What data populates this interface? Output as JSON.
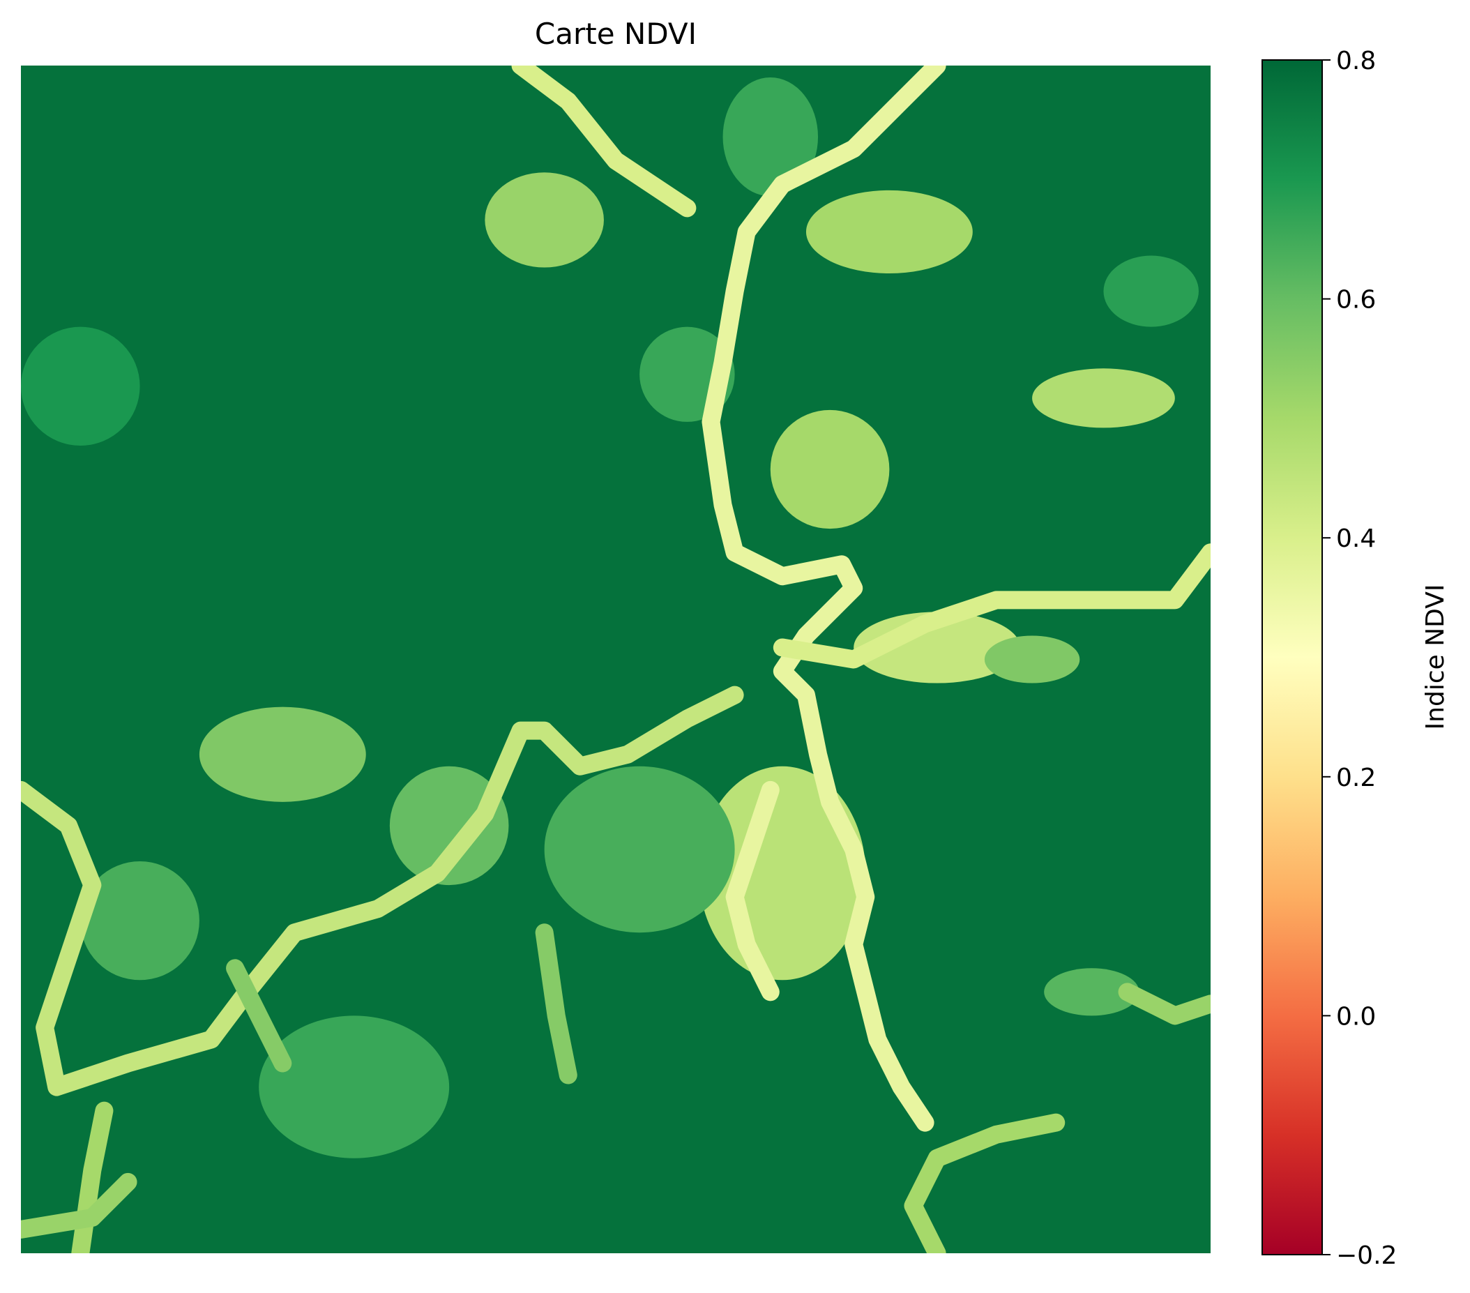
{
  "chart_data": {
    "type": "heatmap",
    "title": "Carte NDVI",
    "xlabel": "",
    "ylabel": "",
    "axes_visible": false,
    "grid": false,
    "colormap": "RdYlGn",
    "color_stops": [
      "#a50026",
      "#d73027",
      "#f46d43",
      "#fdae61",
      "#fee08b",
      "#ffffbf",
      "#d9ef8b",
      "#a6d96a",
      "#66bd63",
      "#1a9850",
      "#006837"
    ],
    "vmin": -0.2,
    "vmax": 0.8,
    "colorbar": {
      "label": "Indice NDVI",
      "placement": "right",
      "ticks": [
        {
          "value": 0.8,
          "label": "0.8"
        },
        {
          "value": 0.6,
          "label": "0.6"
        },
        {
          "value": 0.4,
          "label": "0.4"
        },
        {
          "value": 0.2,
          "label": "0.2"
        },
        {
          "value": 0.0,
          "label": "0.0"
        },
        {
          "value": -0.2,
          "label": "−0.2"
        }
      ]
    },
    "background_value": 0.78,
    "features": [
      {
        "kind": "path",
        "value": 0.36,
        "points": [
          [
            0.77,
            0.0
          ],
          [
            0.74,
            0.03
          ],
          [
            0.7,
            0.07
          ],
          [
            0.64,
            0.1
          ],
          [
            0.61,
            0.14
          ],
          [
            0.6,
            0.19
          ],
          [
            0.59,
            0.25
          ],
          [
            0.58,
            0.3
          ],
          [
            0.59,
            0.37
          ],
          [
            0.6,
            0.41
          ],
          [
            0.64,
            0.43
          ],
          [
            0.69,
            0.42
          ],
          [
            0.7,
            0.44
          ],
          [
            0.66,
            0.48
          ],
          [
            0.64,
            0.51
          ],
          [
            0.66,
            0.53
          ],
          [
            0.67,
            0.58
          ],
          [
            0.68,
            0.62
          ],
          [
            0.7,
            0.66
          ],
          [
            0.71,
            0.7
          ],
          [
            0.7,
            0.74
          ],
          [
            0.71,
            0.78
          ],
          [
            0.72,
            0.82
          ],
          [
            0.74,
            0.86
          ],
          [
            0.76,
            0.89
          ]
        ]
      },
      {
        "kind": "path",
        "value": 0.36,
        "points": [
          [
            0.63,
            0.61
          ],
          [
            0.62,
            0.64
          ],
          [
            0.61,
            0.67
          ],
          [
            0.6,
            0.7
          ],
          [
            0.61,
            0.74
          ],
          [
            0.63,
            0.78
          ]
        ]
      },
      {
        "kind": "path",
        "value": 0.4,
        "points": [
          [
            0.42,
            0.0
          ],
          [
            0.46,
            0.03
          ],
          [
            0.5,
            0.08
          ],
          [
            0.56,
            0.12
          ]
        ]
      },
      {
        "kind": "path",
        "value": 0.4,
        "points": [
          [
            0.64,
            0.49
          ],
          [
            0.7,
            0.5
          ],
          [
            0.76,
            0.47
          ],
          [
            0.82,
            0.45
          ],
          [
            0.88,
            0.45
          ],
          [
            0.97,
            0.45
          ],
          [
            1.0,
            0.41
          ]
        ]
      },
      {
        "kind": "path",
        "value": 0.44,
        "points": [
          [
            0.0,
            0.61
          ],
          [
            0.04,
            0.64
          ],
          [
            0.06,
            0.69
          ],
          [
            0.04,
            0.75
          ],
          [
            0.02,
            0.81
          ],
          [
            0.03,
            0.86
          ],
          [
            0.09,
            0.84
          ],
          [
            0.16,
            0.82
          ],
          [
            0.19,
            0.78
          ],
          [
            0.23,
            0.73
          ],
          [
            0.3,
            0.71
          ],
          [
            0.35,
            0.68
          ],
          [
            0.39,
            0.63
          ],
          [
            0.42,
            0.56
          ],
          [
            0.44,
            0.56
          ],
          [
            0.47,
            0.59
          ],
          [
            0.51,
            0.58
          ],
          [
            0.56,
            0.55
          ],
          [
            0.6,
            0.53
          ]
        ]
      },
      {
        "kind": "path",
        "value": 0.5,
        "points": [
          [
            0.07,
            0.88
          ],
          [
            0.06,
            0.93
          ],
          [
            0.05,
            1.0
          ]
        ]
      },
      {
        "kind": "path",
        "value": 0.5,
        "points": [
          [
            0.77,
            1.0
          ],
          [
            0.75,
            0.96
          ],
          [
            0.77,
            0.92
          ],
          [
            0.82,
            0.9
          ],
          [
            0.87,
            0.89
          ]
        ]
      },
      {
        "kind": "path",
        "value": 0.52,
        "points": [
          [
            0.0,
            0.98
          ],
          [
            0.06,
            0.97
          ],
          [
            0.09,
            0.94
          ]
        ]
      },
      {
        "kind": "path",
        "value": 0.55,
        "points": [
          [
            0.18,
            0.76
          ],
          [
            0.2,
            0.8
          ],
          [
            0.22,
            0.84
          ]
        ]
      },
      {
        "kind": "path",
        "value": 0.55,
        "points": [
          [
            0.44,
            0.73
          ],
          [
            0.45,
            0.8
          ],
          [
            0.46,
            0.85
          ]
        ]
      },
      {
        "kind": "path",
        "value": 0.52,
        "points": [
          [
            0.93,
            0.78
          ],
          [
            0.97,
            0.8
          ],
          [
            1.0,
            0.79
          ]
        ]
      },
      {
        "kind": "blob",
        "value": 0.52,
        "cx": 0.44,
        "cy": 0.13,
        "rx": 0.05,
        "ry": 0.04
      },
      {
        "kind": "blob",
        "value": 0.5,
        "cx": 0.73,
        "cy": 0.14,
        "rx": 0.07,
        "ry": 0.035
      },
      {
        "kind": "blob",
        "value": 0.5,
        "cx": 0.68,
        "cy": 0.34,
        "rx": 0.05,
        "ry": 0.05
      },
      {
        "kind": "blob",
        "value": 0.48,
        "cx": 0.91,
        "cy": 0.28,
        "rx": 0.06,
        "ry": 0.025
      },
      {
        "kind": "blob",
        "value": 0.44,
        "cx": 0.77,
        "cy": 0.49,
        "rx": 0.07,
        "ry": 0.03
      },
      {
        "kind": "blob",
        "value": 0.56,
        "cx": 0.85,
        "cy": 0.5,
        "rx": 0.04,
        "ry": 0.02
      },
      {
        "kind": "blob",
        "value": 0.46,
        "cx": 0.64,
        "cy": 0.68,
        "rx": 0.07,
        "ry": 0.09
      },
      {
        "kind": "blob",
        "value": 0.56,
        "cx": 0.22,
        "cy": 0.58,
        "rx": 0.07,
        "ry": 0.04
      },
      {
        "kind": "blob",
        "value": 0.6,
        "cx": 0.36,
        "cy": 0.64,
        "rx": 0.05,
        "ry": 0.05
      },
      {
        "kind": "blob",
        "value": 0.64,
        "cx": 0.52,
        "cy": 0.66,
        "rx": 0.08,
        "ry": 0.07
      },
      {
        "kind": "blob",
        "value": 0.62,
        "cx": 0.9,
        "cy": 0.78,
        "rx": 0.04,
        "ry": 0.02
      },
      {
        "kind": "blob",
        "value": 0.64,
        "cx": 0.1,
        "cy": 0.72,
        "rx": 0.05,
        "ry": 0.05
      },
      {
        "kind": "blob",
        "value": 0.66,
        "cx": 0.28,
        "cy": 0.86,
        "rx": 0.08,
        "ry": 0.06
      },
      {
        "kind": "blob",
        "value": 0.66,
        "cx": 0.56,
        "cy": 0.26,
        "rx": 0.04,
        "ry": 0.04
      },
      {
        "kind": "blob",
        "value": 0.68,
        "cx": 0.95,
        "cy": 0.19,
        "rx": 0.04,
        "ry": 0.03
      },
      {
        "kind": "blob",
        "value": 0.66,
        "cx": 0.63,
        "cy": 0.06,
        "rx": 0.04,
        "ry": 0.05
      },
      {
        "kind": "blob",
        "value": 0.7,
        "cx": 0.05,
        "cy": 0.27,
        "rx": 0.05,
        "ry": 0.05
      }
    ]
  }
}
